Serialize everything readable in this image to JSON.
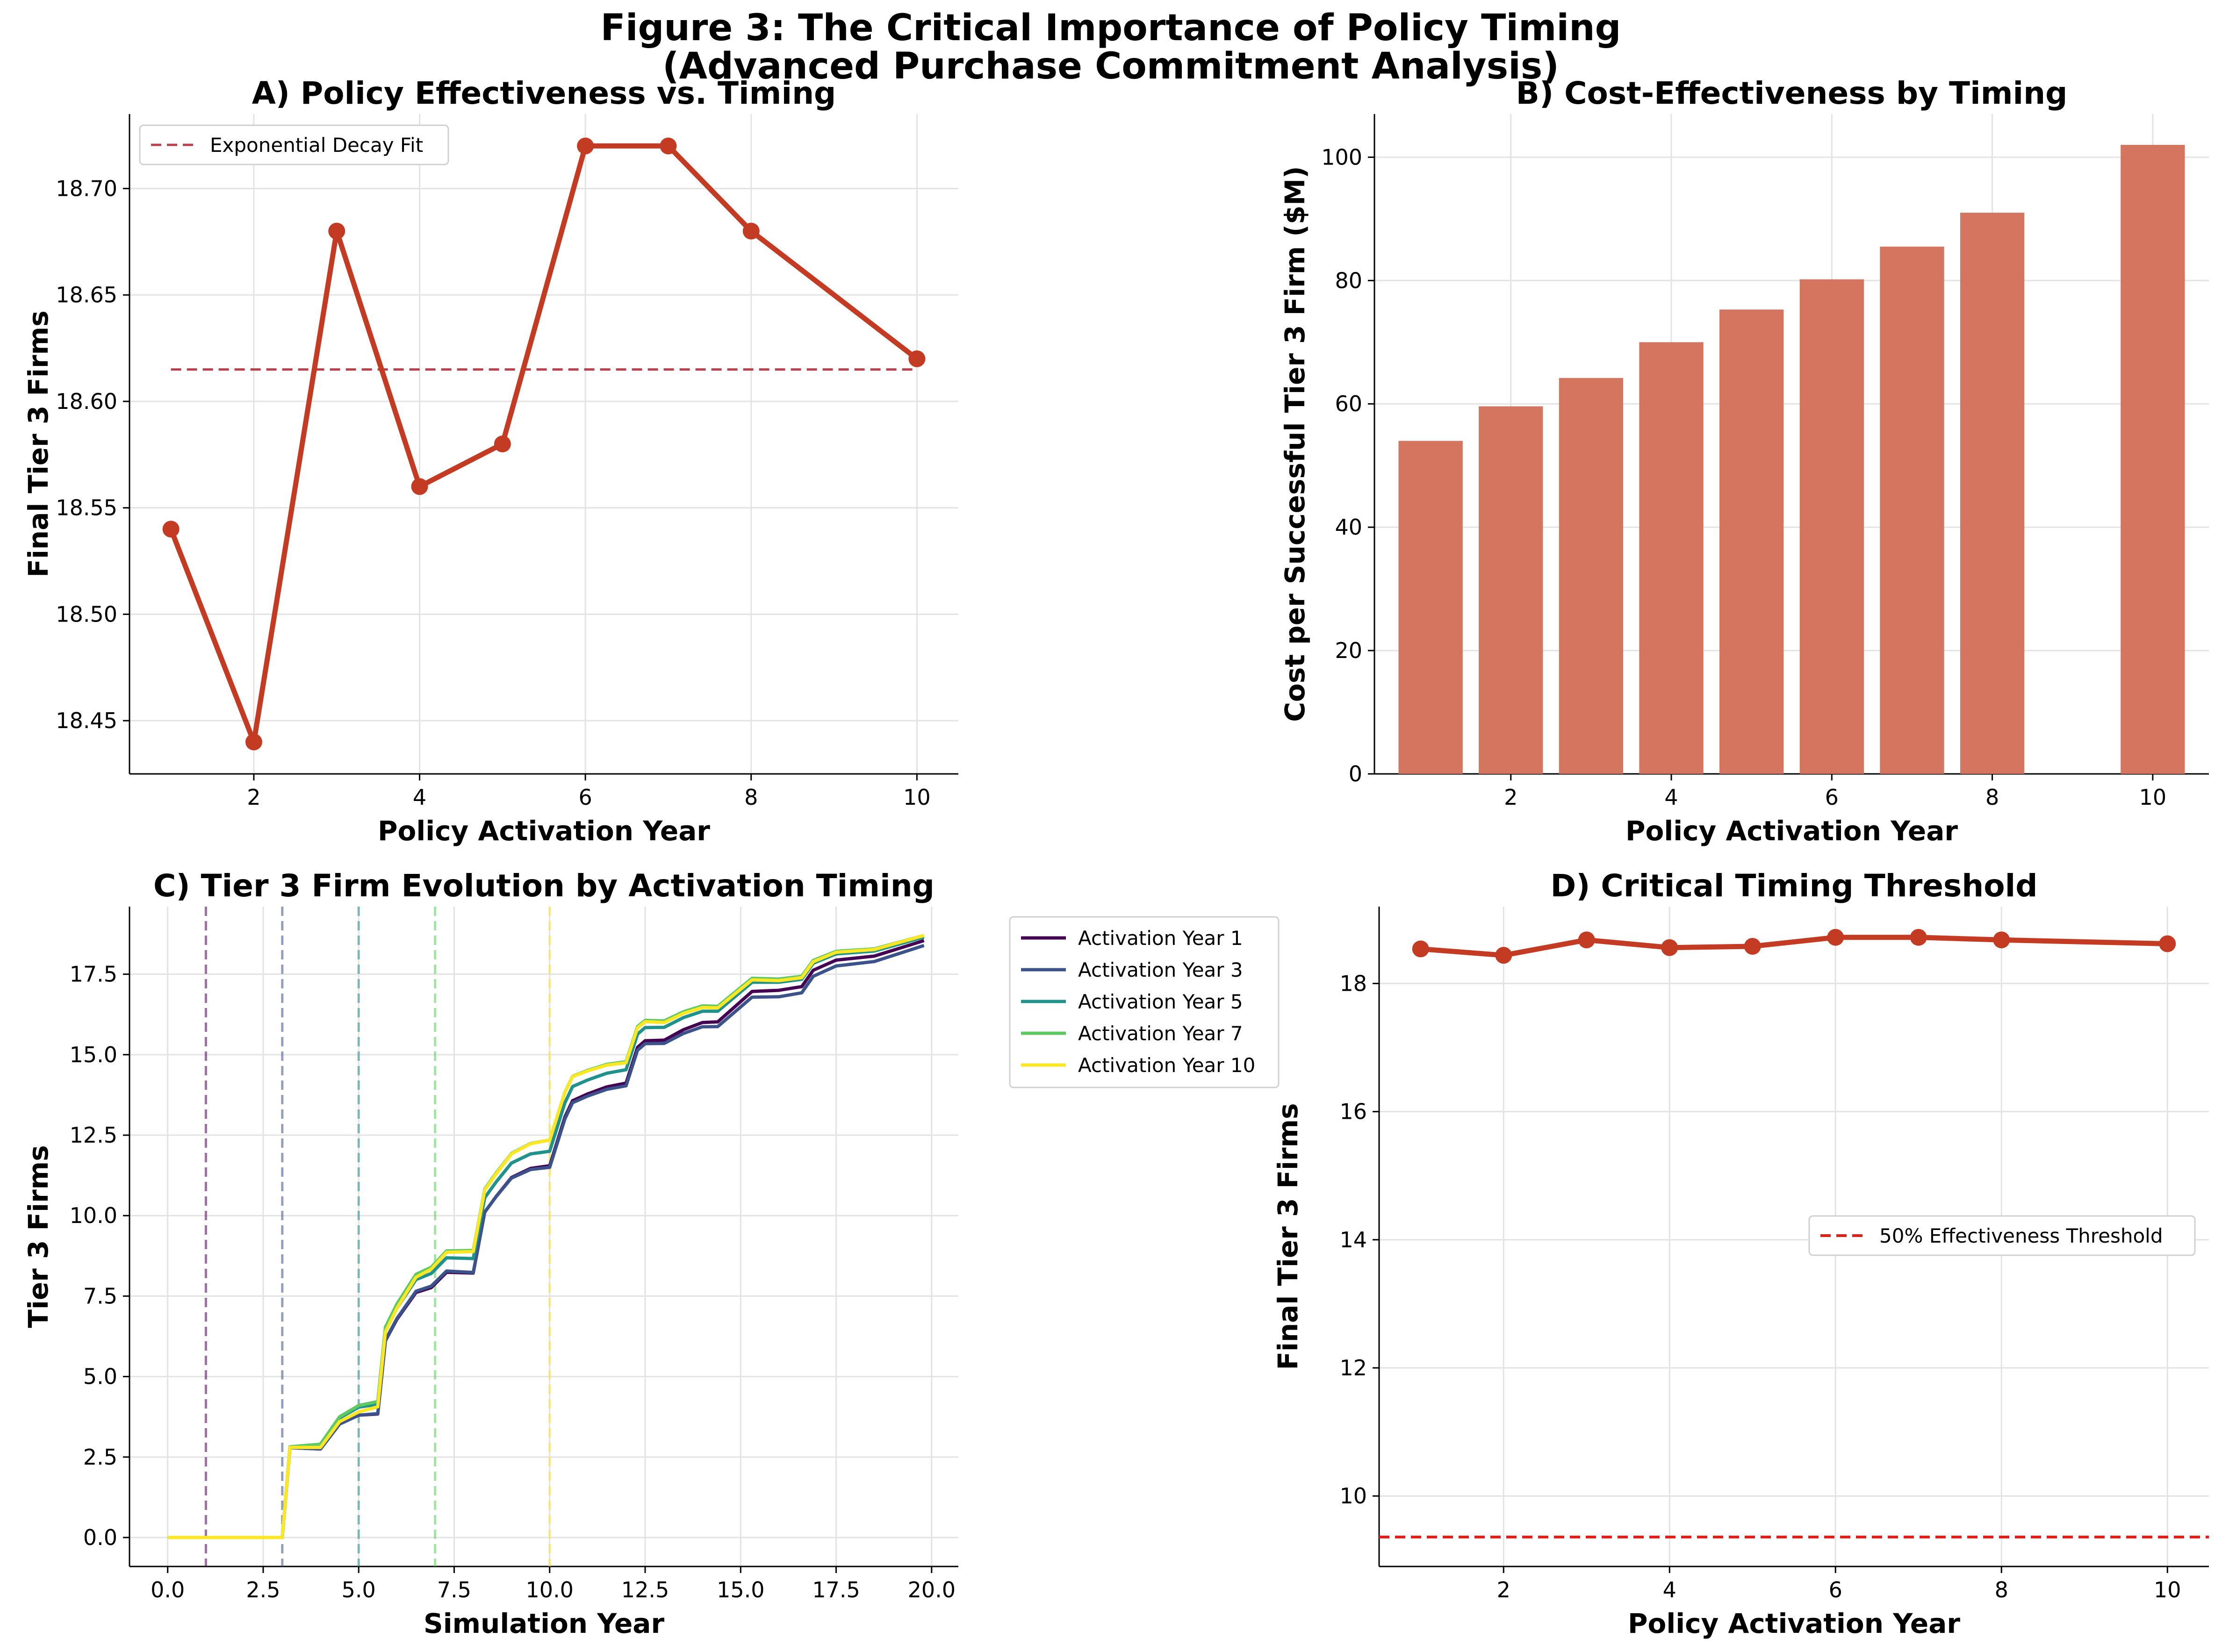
{
  "title": {
    "line1": "Figure 3: The Critical Importance of Policy Timing",
    "line2": "(Advanced Purchase Commitment Analysis)"
  },
  "colors": {
    "main": "#c23b22",
    "bar": "#d47560",
    "fit": "#b8404a",
    "threshold": "#e0201a",
    "viridis": [
      "#440154",
      "#3b528b",
      "#21918c",
      "#5ec962",
      "#fde725"
    ]
  },
  "chart_data": [
    {
      "id": "A",
      "type": "line",
      "title": "A) Policy Effectiveness vs. Timing",
      "xlabel": "Policy Activation Year",
      "ylabel": "Final Tier 3 Firms",
      "x": [
        1,
        2,
        3,
        4,
        5,
        6,
        7,
        8,
        10
      ],
      "series": [
        {
          "values": [
            18.54,
            18.44,
            18.68,
            18.56,
            18.58,
            18.72,
            18.72,
            18.68,
            18.62
          ]
        },
        {
          "name": "Exponential Decay Fit",
          "style": "dashed",
          "x": [
            1,
            10
          ],
          "values": [
            18.615,
            18.615
          ]
        }
      ],
      "xlim": [
        0.5,
        10.5
      ],
      "ylim": [
        18.425,
        18.735
      ],
      "xticks": [
        "2",
        "4",
        "6",
        "8",
        "10"
      ],
      "yticks": [
        "18.45",
        "18.50",
        "18.55",
        "18.60",
        "18.65",
        "18.70"
      ],
      "legend": "top-left",
      "grid": true
    },
    {
      "id": "B",
      "type": "bar",
      "title": "B) Cost-Effectiveness by Timing",
      "xlabel": "Policy Activation Year",
      "ylabel": "Cost per Successful Tier 3 Firm ($M)",
      "x": [
        1,
        2,
        3,
        4,
        5,
        6,
        7,
        8,
        10
      ],
      "values": [
        54,
        59.6,
        64.2,
        70,
        75.3,
        80.2,
        85.5,
        91,
        102
      ],
      "xlim": [
        0.3,
        10.7
      ],
      "ylim": [
        0,
        107
      ],
      "xticks": [
        "2",
        "4",
        "6",
        "8",
        "10"
      ],
      "yticks": [
        "0",
        "20",
        "40",
        "60",
        "80",
        "100"
      ],
      "grid": true
    },
    {
      "id": "C",
      "type": "line",
      "title": "C) Tier 3 Firm Evolution by Activation Timing",
      "xlabel": "Simulation Year",
      "ylabel": "Tier 3 Firms",
      "xlim": [
        -1,
        20.7
      ],
      "ylim": [
        -0.9,
        19.6
      ],
      "xticks": [
        "0.0",
        "2.5",
        "5.0",
        "7.5",
        "10.0",
        "12.5",
        "15.0",
        "17.5",
        "20.0"
      ],
      "yticks": [
        "0.0",
        "2.5",
        "5.0",
        "7.5",
        "10.0",
        "12.5",
        "15.0",
        "17.5"
      ],
      "activation_lines": [
        1,
        3,
        5,
        7,
        10
      ],
      "series": [
        {
          "name": "Activation Year 1",
          "offsets": [
            0,
            0,
            -0.1,
            -0.35,
            -0.45,
            -0.35,
            -0.2,
            -0.1
          ]
        },
        {
          "name": "Activation Year 3",
          "offsets": [
            0,
            0,
            -0.1,
            -0.3,
            -0.5,
            -0.45,
            -0.4,
            -0.25
          ]
        },
        {
          "name": "Activation Year 5",
          "offsets": [
            0,
            0,
            0.15,
            0.1,
            0.0,
            0.05,
            0.05,
            0.0
          ]
        },
        {
          "name": "Activation Year 7",
          "offsets": [
            0,
            0,
            0.2,
            0.3,
            0.35,
            0.25,
            0.15,
            0.05
          ]
        },
        {
          "name": "Activation Year 10",
          "offsets": [
            0,
            0,
            0.0,
            0.25,
            0.35,
            0.2,
            0.1,
            0.05
          ]
        }
      ],
      "base_curve": {
        "x": [
          0,
          3.0,
          3.2,
          4.0,
          4.5,
          5.0,
          5.5,
          5.7,
          6.0,
          6.5,
          6.9,
          7.3,
          8.0,
          8.3,
          8.6,
          9.0,
          9.5,
          10.0,
          10.4,
          10.6,
          11.0,
          11.5,
          12.0,
          12.3,
          12.5,
          13.0,
          13.5,
          14.0,
          14.4,
          15.0,
          15.3,
          16.0,
          16.6,
          16.9,
          17.5,
          18.5,
          19.8
        ],
        "values": [
          0,
          0,
          2.8,
          2.8,
          3.6,
          3.9,
          4.0,
          6.3,
          7.0,
          7.9,
          8.1,
          8.6,
          8.6,
          10.5,
          11.0,
          11.6,
          11.9,
          12.0,
          13.5,
          14.0,
          14.2,
          14.4,
          14.5,
          15.6,
          15.8,
          15.8,
          16.1,
          16.3,
          16.3,
          16.9,
          17.2,
          17.2,
          17.3,
          17.8,
          18.1,
          18.2,
          18.65
        ]
      },
      "legend": "outside-right",
      "grid": true
    },
    {
      "id": "D",
      "type": "line",
      "title": "D) Critical Timing Threshold",
      "xlabel": "Policy Activation Year",
      "ylabel": "Final Tier 3 Firms",
      "x": [
        1,
        2,
        3,
        4,
        5,
        6,
        7,
        8,
        10
      ],
      "values": [
        18.54,
        18.44,
        18.68,
        18.56,
        18.58,
        18.72,
        18.72,
        18.68,
        18.62
      ],
      "threshold": {
        "name": "50% Effectiveness Threshold",
        "value": 9.36
      },
      "xlim": [
        0.5,
        10.5
      ],
      "ylim": [
        8.9,
        19.2
      ],
      "xticks": [
        "2",
        "4",
        "6",
        "8",
        "10"
      ],
      "yticks": [
        "10",
        "12",
        "14",
        "16",
        "18"
      ],
      "legend": "center-right",
      "grid": true
    }
  ]
}
